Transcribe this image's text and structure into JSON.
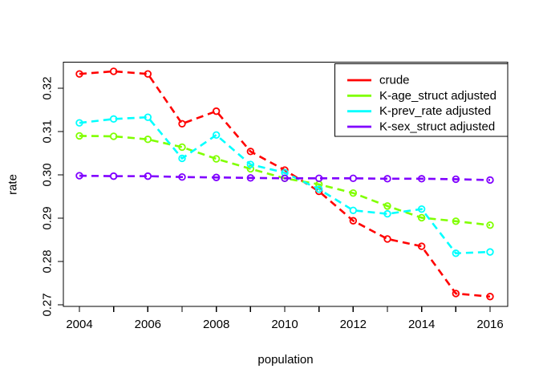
{
  "figure": {
    "background": "#FFFFFF",
    "axis_color": "#000000",
    "text_color": "#000000"
  },
  "chart_data": {
    "type": "line",
    "title": "",
    "xlabel": "population",
    "ylabel": "rate",
    "xlim": [
      2004,
      2016
    ],
    "ylim": [
      0.27,
      0.325
    ],
    "grid": false,
    "line_style": "dashed",
    "marker": "open-circle",
    "legend_position": "top-right",
    "x": [
      2004,
      2005,
      2006,
      2007,
      2008,
      2009,
      2010,
      2011,
      2012,
      2013,
      2014,
      2015,
      2016
    ],
    "x_ticks": [
      2004,
      2005,
      2006,
      2007,
      2008,
      2009,
      2010,
      2011,
      2012,
      2013,
      2014,
      2015,
      2016
    ],
    "x_labeled_ticks": [
      "2004",
      "2006",
      "2008",
      "2010",
      "2012",
      "2014",
      "2016"
    ],
    "y_ticks": [
      "0.27",
      "0.28",
      "0.29",
      "0.30",
      "0.31",
      "0.32"
    ],
    "series": [
      {
        "name": "crude",
        "color": "#FF0000",
        "values": [
          0.3233,
          0.3239,
          0.3233,
          0.3118,
          0.3147,
          0.3054,
          0.3011,
          0.2962,
          0.2894,
          0.2852,
          0.2835,
          0.2726,
          0.2719
        ]
      },
      {
        "name": "K-age_struct adjusted",
        "color": "#80FF00",
        "values": [
          0.309,
          0.3089,
          0.3082,
          0.3064,
          0.3037,
          0.3014,
          0.2992,
          0.2978,
          0.2958,
          0.2928,
          0.2901,
          0.2893,
          0.2884
        ]
      },
      {
        "name": "K-prev_rate adjusted",
        "color": "#00FFFF",
        "values": [
          0.312,
          0.3129,
          0.3133,
          0.3038,
          0.3092,
          0.3024,
          0.3005,
          0.2967,
          0.2918,
          0.291,
          0.2921,
          0.2819,
          0.2822
        ]
      },
      {
        "name": "K-sex_struct adjusted",
        "color": "#8000FF",
        "values": [
          0.2998,
          0.2997,
          0.2997,
          0.2995,
          0.2994,
          0.2993,
          0.2992,
          0.2992,
          0.2992,
          0.2991,
          0.2991,
          0.299,
          0.2988
        ]
      }
    ]
  }
}
